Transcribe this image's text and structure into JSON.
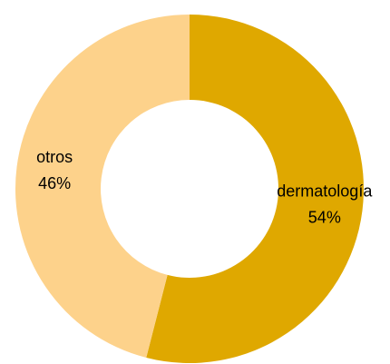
{
  "chart_data": {
    "type": "donut",
    "categories": [
      "dermatología",
      "otros"
    ],
    "values": [
      54,
      46
    ],
    "value_labels": [
      "54%",
      "46%"
    ],
    "colors": [
      "#dfa800",
      "#fdd28b"
    ]
  }
}
